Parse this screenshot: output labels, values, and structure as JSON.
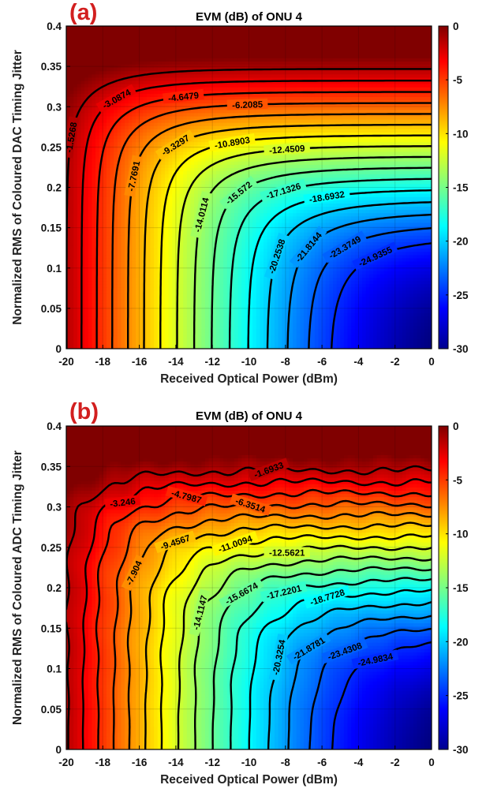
{
  "chart_data": [
    {
      "type": "heatmap",
      "panel_label": "(a)",
      "title": "EVM (dB) of ONU 4",
      "xlabel": "Received Optical Power (dBm)",
      "ylabel": "Normalized RMS of Coloured DAC Timing Jitter",
      "xlim": [
        -20,
        0
      ],
      "ylim": [
        0,
        0.4
      ],
      "x_ticks": [
        "-20",
        "-18",
        "-16",
        "-14",
        "-12",
        "-10",
        "-8",
        "-6",
        "-4",
        "-2",
        "0"
      ],
      "y_ticks": [
        "0",
        "0.05",
        "0.1",
        "0.15",
        "0.2",
        "0.25",
        "0.3",
        "0.35",
        "0.4"
      ],
      "colorbar": {
        "colormap": "jet",
        "limits": [
          -30,
          0
        ],
        "ticks": [
          "0",
          "-5",
          "-10",
          "-15",
          "-20",
          "-25",
          "-30"
        ]
      },
      "grid": true,
      "contour_levels": [
        "-1.5268",
        "-3.0874",
        "-4.6479",
        "-6.2085",
        "-7.7691",
        "-9.3297",
        "-10.8903",
        "-12.4509",
        "-14.0114",
        "-15.572",
        "-17.1326",
        "-18.6932",
        "-20.2538",
        "-21.8144",
        "-23.3749",
        "-24.9355"
      ]
    },
    {
      "type": "heatmap",
      "panel_label": "(b)",
      "title": "EVM (dB) of ONU 4",
      "xlabel": "Received Optical Power (dBm)",
      "ylabel": "Normalized RMS of Coloured ADC Timing Jitter",
      "xlim": [
        -20,
        0
      ],
      "ylim": [
        0,
        0.4
      ],
      "x_ticks": [
        "-20",
        "-18",
        "-16",
        "-14",
        "-12",
        "-10",
        "-8",
        "-6",
        "-4",
        "-2",
        "0"
      ],
      "y_ticks": [
        "0",
        "0.05",
        "0.1",
        "0.15",
        "0.2",
        "0.25",
        "0.3",
        "0.35",
        "0.4"
      ],
      "colorbar": {
        "colormap": "jet",
        "limits": [
          -30,
          0
        ],
        "ticks": [
          "0",
          "-5",
          "-10",
          "-15",
          "-20",
          "-25",
          "-30"
        ]
      },
      "grid": true,
      "contour_levels": [
        "-1.6933",
        "-3.246",
        "-4.7987",
        "-6.3514",
        "-7.904",
        "-9.4567",
        "-11.0094",
        "-12.5621",
        "-14.1147",
        "-15.6674",
        "-17.2201",
        "-18.7728",
        "-20.3254",
        "-21.8781",
        "-23.4308",
        "-24.9834"
      ]
    }
  ]
}
